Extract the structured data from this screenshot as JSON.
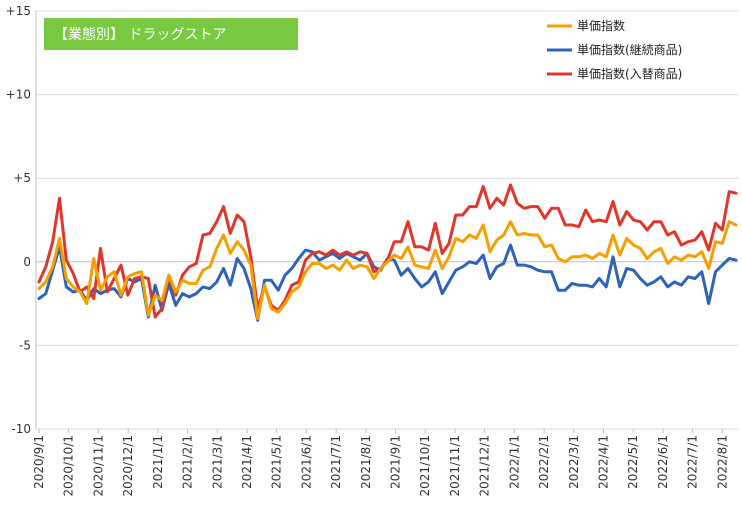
{
  "chart_data": {
    "type": "line",
    "title": "【業態別】 ドラッグストア",
    "title_bg_color": "#7ac943",
    "xlabel": "",
    "ylabel": "",
    "ylim": [
      -10,
      15
    ],
    "yticks": [
      -10,
      -5,
      0,
      5,
      10,
      15
    ],
    "ytick_labels": [
      "-10",
      "-5",
      "0",
      "+5",
      "+10",
      "+15"
    ],
    "grid": true,
    "legend_position": "top-right",
    "x_tick_labels": [
      "2020/9/1",
      "2020/10/1",
      "2020/11/1",
      "2020/12/1",
      "2021/1/1",
      "2021/2/1",
      "2021/3/1",
      "2021/4/1",
      "2021/5/1",
      "2021/6/1",
      "2021/7/1",
      "2021/8/1",
      "2021/9/1",
      "2021/10/1",
      "2021/11/1",
      "2021/12/1",
      "2022/1/1",
      "2022/2/1",
      "2022/3/1",
      "2022/4/1",
      "2022/5/1",
      "2022/6/1",
      "2022/7/1",
      "2022/8/1"
    ],
    "weeks_per_tick": 4.348,
    "series": [
      {
        "name": "単価指数",
        "color": "#f5a000",
        "values": [
          -1.6,
          -1.2,
          -0.3,
          1.4,
          -1.0,
          -1.5,
          -1.8,
          -2.5,
          0.2,
          -1.7,
          -0.9,
          -0.6,
          -2.0,
          -0.9,
          -0.7,
          -0.6,
          -3.2,
          -2.0,
          -2.3,
          -0.8,
          -1.8,
          -1.1,
          -1.3,
          -1.3,
          -0.5,
          -0.3,
          0.8,
          1.6,
          0.5,
          1.2,
          0.7,
          -0.2,
          -3.4,
          -1.4,
          -2.8,
          -3.0,
          -2.5,
          -1.8,
          -1.5,
          -0.6,
          -0.1,
          -0.1,
          -0.4,
          -0.2,
          -0.5,
          0.1,
          -0.4,
          -0.2,
          -0.3,
          -1.0,
          -0.4,
          0.0,
          0.4,
          0.2,
          0.9,
          -0.2,
          -0.3,
          -0.4,
          0.7,
          -0.4,
          0.3,
          1.4,
          1.2,
          1.6,
          1.4,
          2.2,
          0.6,
          1.3,
          1.6,
          2.4,
          1.6,
          1.7,
          1.6,
          1.6,
          0.9,
          1.0,
          0.2,
          0.0,
          0.3,
          0.3,
          0.4,
          0.2,
          0.5,
          0.3,
          1.6,
          0.4,
          1.4,
          1.0,
          0.8,
          0.2,
          0.6,
          0.8,
          -0.1,
          0.3,
          0.1,
          0.4,
          0.3,
          0.6,
          -0.4,
          1.2,
          1.1,
          2.4,
          2.2
        ]
      },
      {
        "name": "単価指数(継続商品)",
        "color": "#2f63b8",
        "values": [
          -2.2,
          -1.9,
          -0.5,
          0.9,
          -1.5,
          -1.8,
          -1.7,
          -2.3,
          -1.6,
          -1.9,
          -1.7,
          -1.6,
          -2.1,
          -1.0,
          -1.2,
          -1.0,
          -3.3,
          -1.4,
          -2.9,
          -1.3,
          -2.6,
          -1.9,
          -2.1,
          -1.9,
          -1.5,
          -1.6,
          -1.2,
          -0.4,
          -1.4,
          0.2,
          -0.4,
          -1.6,
          -3.5,
          -1.1,
          -1.1,
          -1.7,
          -0.8,
          -0.4,
          0.2,
          0.7,
          0.6,
          0.1,
          0.3,
          0.5,
          0.2,
          0.5,
          0.3,
          0.1,
          0.5,
          -0.3,
          -0.5,
          0.2,
          0.1,
          -0.8,
          -0.4,
          -1.0,
          -1.5,
          -1.2,
          -0.6,
          -1.9,
          -1.2,
          -0.5,
          -0.3,
          0.0,
          -0.1,
          0.4,
          -1.0,
          -0.3,
          -0.1,
          1.0,
          -0.2,
          -0.2,
          -0.3,
          -0.5,
          -0.6,
          -0.6,
          -1.7,
          -1.7,
          -1.3,
          -1.4,
          -1.4,
          -1.5,
          -1.0,
          -1.5,
          0.3,
          -1.5,
          -0.4,
          -0.5,
          -1.0,
          -1.4,
          -1.2,
          -0.9,
          -1.5,
          -1.2,
          -1.4,
          -0.9,
          -1.0,
          -0.6,
          -2.5,
          -0.6,
          -0.2,
          0.2,
          0.1
        ]
      },
      {
        "name": "単価指数(入替商品)",
        "color": "#e0362b",
        "values": [
          -1.2,
          -0.3,
          1.2,
          3.8,
          0.1,
          -0.7,
          -1.8,
          -1.5,
          -2.2,
          0.8,
          -1.8,
          -1.0,
          -0.2,
          -2.0,
          -1.0,
          -0.9,
          -1.0,
          -3.3,
          -2.8,
          -0.8,
          -2.0,
          -0.8,
          -0.3,
          -0.1,
          1.6,
          1.7,
          2.4,
          3.3,
          1.7,
          2.8,
          2.4,
          0.3,
          -2.8,
          -1.5,
          -2.6,
          -2.9,
          -2.3,
          -1.4,
          -1.2,
          0.1,
          0.5,
          0.6,
          0.4,
          0.7,
          0.4,
          0.6,
          0.4,
          0.6,
          0.5,
          -0.6,
          -0.4,
          0.1,
          1.2,
          1.2,
          2.4,
          0.9,
          0.9,
          0.7,
          2.3,
          0.5,
          1.1,
          2.8,
          2.8,
          3.3,
          3.3,
          4.5,
          3.2,
          3.8,
          3.4,
          4.6,
          3.5,
          3.2,
          3.3,
          3.3,
          2.6,
          3.2,
          3.2,
          2.2,
          2.2,
          2.1,
          3.1,
          2.4,
          2.5,
          2.4,
          3.6,
          2.2,
          3.0,
          2.5,
          2.4,
          1.9,
          2.4,
          2.4,
          1.6,
          1.8,
          1.0,
          1.2,
          1.3,
          1.8,
          0.7,
          2.3,
          1.9,
          4.2,
          4.1
        ]
      }
    ]
  }
}
